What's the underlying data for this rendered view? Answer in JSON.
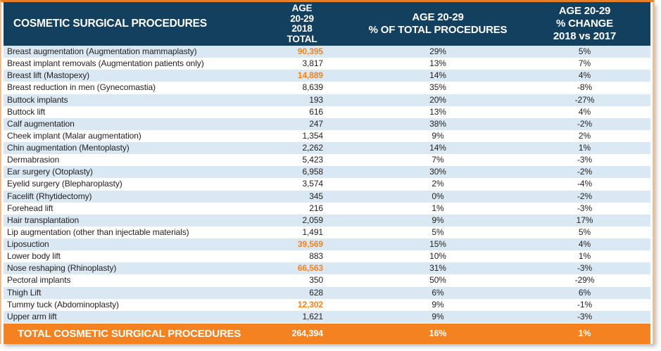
{
  "header": {
    "title": "COSMETIC SURGICAL PROCEDURES",
    "col_total_lines": [
      "AGE",
      "20-29",
      "2018",
      "TOTAL"
    ],
    "col_pct_total_lines": [
      "AGE 20-29",
      "% OF TOTAL PROCEDURES"
    ],
    "col_pct_change_lines": [
      "AGE 20-29",
      "% CHANGE 2018 vs 2017"
    ]
  },
  "rows": [
    {
      "name": "Breast augmentation (Augmentation mammaplasty)",
      "total": "90,395",
      "pct_of_total": "29%",
      "pct_change": "5%",
      "highlighted": true
    },
    {
      "name": "Breast implant removals (Augmentation patients only)",
      "total": "3,817",
      "pct_of_total": "13%",
      "pct_change": "7%",
      "highlighted": false
    },
    {
      "name": "Breast lift (Mastopexy)",
      "total": "14,889",
      "pct_of_total": "14%",
      "pct_change": "4%",
      "highlighted": true
    },
    {
      "name": "Breast reduction in men (Gynecomastia)",
      "total": "8,639",
      "pct_of_total": "35%",
      "pct_change": "-8%",
      "highlighted": false
    },
    {
      "name": "Buttock implants",
      "total": "193",
      "pct_of_total": "20%",
      "pct_change": "-27%",
      "highlighted": false
    },
    {
      "name": "Buttock lift",
      "total": "616",
      "pct_of_total": "13%",
      "pct_change": "4%",
      "highlighted": false
    },
    {
      "name": "Calf augmentation",
      "total": "247",
      "pct_of_total": "38%",
      "pct_change": "-2%",
      "highlighted": false
    },
    {
      "name": "Cheek implant (Malar augmentation)",
      "total": "1,354",
      "pct_of_total": "9%",
      "pct_change": "2%",
      "highlighted": false
    },
    {
      "name": "Chin augmentation (Mentoplasty)",
      "total": "2,262",
      "pct_of_total": "14%",
      "pct_change": "1%",
      "highlighted": false
    },
    {
      "name": "Dermabrasion",
      "total": "5,423",
      "pct_of_total": "7%",
      "pct_change": "-3%",
      "highlighted": false
    },
    {
      "name": "Ear surgery (Otoplasty)",
      "total": "6,958",
      "pct_of_total": "30%",
      "pct_change": "-2%",
      "highlighted": false
    },
    {
      "name": "Eyelid surgery (Blepharoplasty)",
      "total": "3,574",
      "pct_of_total": "2%",
      "pct_change": "-4%",
      "highlighted": false
    },
    {
      "name": "Facelift (Rhytidectomy)",
      "total": "345",
      "pct_of_total": "0%",
      "pct_change": "-2%",
      "highlighted": false
    },
    {
      "name": "Forehead lift",
      "total": "216",
      "pct_of_total": "1%",
      "pct_change": "-3%",
      "highlighted": false
    },
    {
      "name": "Hair transplantation",
      "total": "2,059",
      "pct_of_total": "9%",
      "pct_change": "17%",
      "highlighted": false
    },
    {
      "name": "Lip augmentation (other than injectable materials)",
      "total": "1,491",
      "pct_of_total": "5%",
      "pct_change": "5%",
      "highlighted": false
    },
    {
      "name": "Liposuction",
      "total": "39,569",
      "pct_of_total": "15%",
      "pct_change": "4%",
      "highlighted": true
    },
    {
      "name": "Lower body lift",
      "total": "883",
      "pct_of_total": "10%",
      "pct_change": "1%",
      "highlighted": false
    },
    {
      "name": "Nose reshaping (Rhinoplasty)",
      "total": "66,563",
      "pct_of_total": "31%",
      "pct_change": "-3%",
      "highlighted": true
    },
    {
      "name": "Pectoral implants",
      "total": "350",
      "pct_of_total": "50%",
      "pct_change": "-29%",
      "highlighted": false
    },
    {
      "name": "Thigh Lift",
      "total": "628",
      "pct_of_total": "6%",
      "pct_change": "6%",
      "highlighted": false
    },
    {
      "name": "Tummy tuck (Abdominoplasty)",
      "total": "12,302",
      "pct_of_total": "9%",
      "pct_change": "-1%",
      "highlighted": true
    },
    {
      "name": "Upper arm lift",
      "total": "1,621",
      "pct_of_total": "9%",
      "pct_change": "-3%",
      "highlighted": false
    }
  ],
  "total_row": {
    "label": "TOTAL COSMETIC SURGICAL PROCEDURES",
    "total": "264,394",
    "pct_of_total": "16%",
    "pct_change": "1%"
  },
  "colors": {
    "navy": "#14405F",
    "orange": "#F58220",
    "orange_border": "#E87E23",
    "side_border": "#F0BE8C",
    "row_alt": "#D9E8F3",
    "text": "#262221"
  }
}
